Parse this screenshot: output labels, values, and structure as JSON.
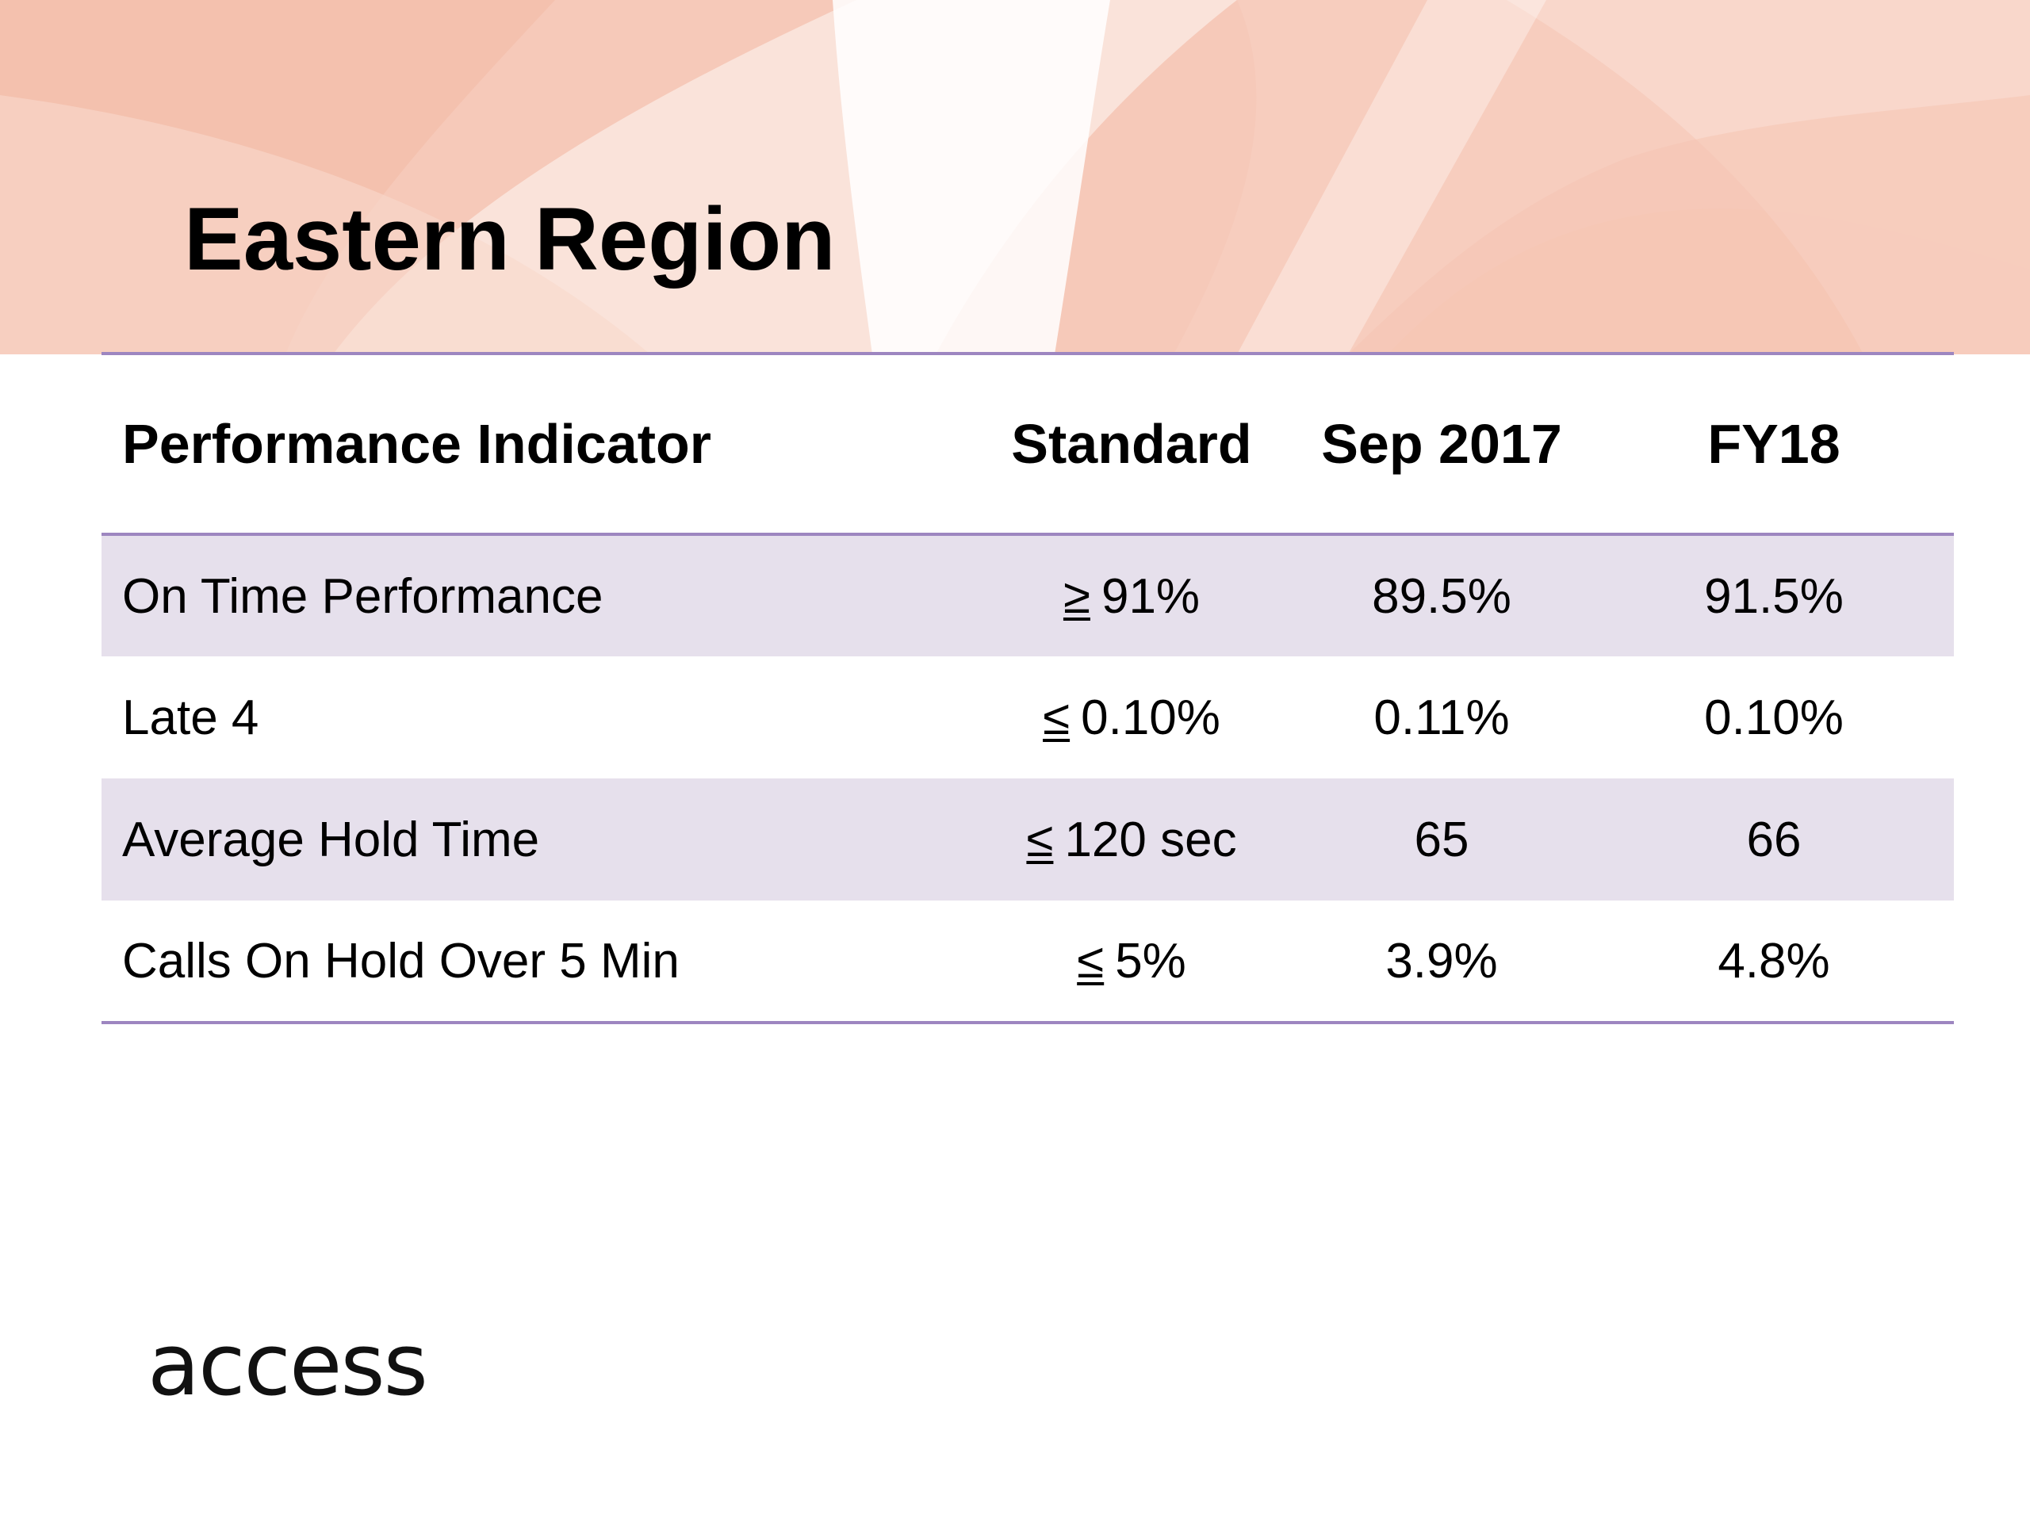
{
  "slide": {
    "title": "Eastern Region",
    "logo_text": "access"
  },
  "table": {
    "headers": [
      "Performance Indicator",
      "Standard",
      "Sep 2017",
      "FY18"
    ],
    "rows": [
      {
        "indicator": "On Time Performance",
        "standard_op": "≥",
        "standard_value": "91%",
        "sep_2017": "89.5%",
        "fy18": "91.5%"
      },
      {
        "indicator": "Late 4",
        "standard_op": "≤",
        "standard_value": "0.10%",
        "sep_2017": "0.11%",
        "fy18": "0.10%"
      },
      {
        "indicator": "Average Hold Time",
        "standard_op": "≤",
        "standard_value": "120 sec",
        "sep_2017": "65",
        "fy18": "66"
      },
      {
        "indicator": "Calls On Hold Over 5 Min",
        "standard_op": "≤",
        "standard_value": "5%",
        "sep_2017": "3.9%",
        "fy18": "4.8%"
      }
    ]
  },
  "colors": {
    "header_band": "#f8d3c6",
    "table_rule": "#9d86c0",
    "row_shading": "#e6e0ec",
    "text": "#000000"
  }
}
